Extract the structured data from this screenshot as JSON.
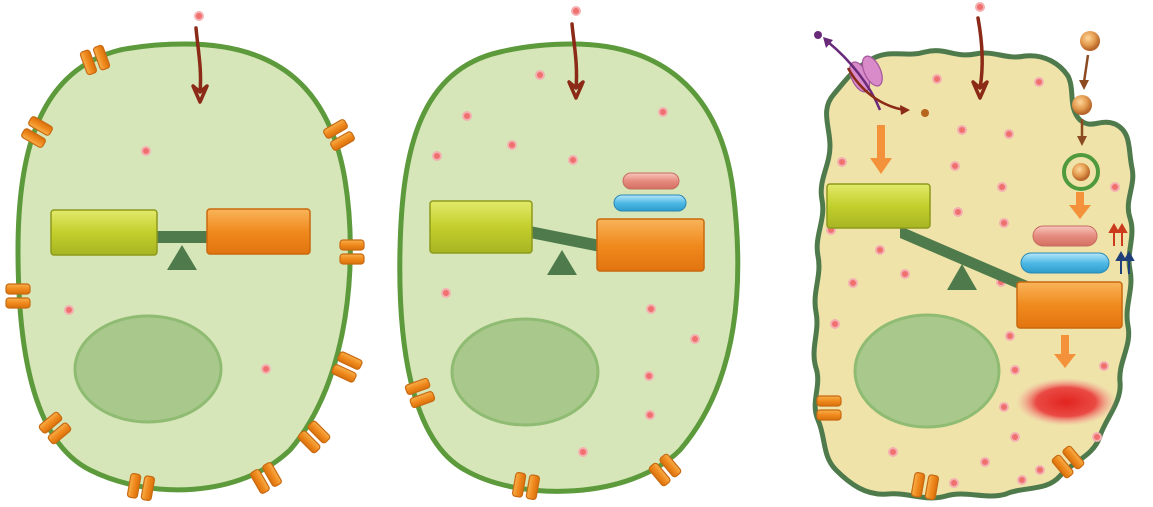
{
  "figure": {
    "panels": [
      {
        "id": "panel-1",
        "state": "balanced",
        "extra_pools": 0
      },
      {
        "id": "panel-2",
        "state": "tilted",
        "extra_pools": 2
      },
      {
        "id": "panel-3",
        "state": "strongly-tilted",
        "extra_pools": 2,
        "indicators": [
          "up-arrows-red",
          "up-arrows-blue"
        ],
        "extra_features": [
          "pump-efflux",
          "endocytosis",
          "red-diffuse-region",
          "ruffled-membrane"
        ]
      }
    ],
    "colors": {
      "cytoplasm_healthy": "#d6e6b8",
      "cytoplasm_stressed": "#efe3a9",
      "membrane": "#5c9a3c",
      "membrane_dark": "#4f7b4c",
      "nucleus": "#a9c98c",
      "lime_box": "#bfcc2f",
      "orange_box": "#f08a1e",
      "pink_bar": "#e68b7f",
      "blue_bar": "#4fb9e6",
      "ion": "#f07070",
      "influx_arrow": "#8b2a17",
      "channel": "#f39c27",
      "red_region": "#e33a3a",
      "pump": "#d88ac9",
      "up_arrow_red": "#cc3a1e",
      "up_arrow_blue": "#1f3f7a"
    },
    "icons": [
      "ion-channel-icon",
      "pump-icon",
      "seesaw-fulcrum-icon",
      "influx-arrow-icon",
      "up-arrow-icon"
    ]
  }
}
